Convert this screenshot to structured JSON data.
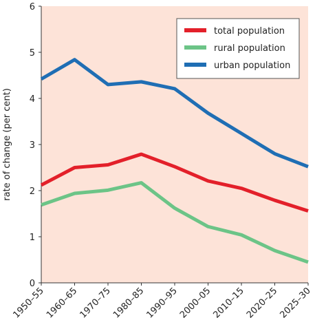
{
  "chart_data": {
    "type": "line",
    "title": "",
    "xlabel": "",
    "ylabel": "rate of change (per cent)",
    "ylim": [
      0,
      6
    ],
    "yticks": [
      0,
      1,
      2,
      3,
      4,
      5,
      6
    ],
    "categories": [
      "1950–55",
      "1960–65",
      "1970–75",
      "1980–85",
      "1990–95",
      "2000–05",
      "2010–15",
      "2020–25",
      "2025–30"
    ],
    "series": [
      {
        "name": "total population",
        "color": "#e3202a",
        "values": [
          2.12,
          2.5,
          2.56,
          2.79,
          2.52,
          2.21,
          2.05,
          1.79,
          1.56
        ]
      },
      {
        "name": "rural population",
        "color": "#6cc487",
        "values": [
          1.69,
          1.94,
          2.01,
          2.17,
          1.62,
          1.22,
          1.04,
          0.7,
          0.45
        ]
      },
      {
        "name": "urban population",
        "color": "#1f6eb4",
        "values": [
          4.42,
          4.84,
          4.3,
          4.36,
          4.21,
          3.68,
          3.24,
          2.8,
          2.52
        ]
      }
    ],
    "grid": false,
    "legend_position": "top-right",
    "background_color": "#fde3d8"
  }
}
